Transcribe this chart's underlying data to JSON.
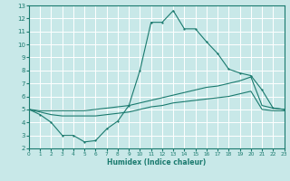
{
  "xlabel": "Humidex (Indice chaleur)",
  "background_color": "#c8e8e8",
  "grid_color": "#ffffff",
  "line_color": "#1a7a6e",
  "xlim": [
    0,
    23
  ],
  "ylim": [
    2,
    13
  ],
  "xticks": [
    0,
    1,
    2,
    3,
    4,
    5,
    6,
    7,
    8,
    9,
    10,
    11,
    12,
    13,
    14,
    15,
    16,
    17,
    18,
    19,
    20,
    21,
    22,
    23
  ],
  "yticks": [
    2,
    3,
    4,
    5,
    6,
    7,
    8,
    9,
    10,
    11,
    12,
    13
  ],
  "curve1": {
    "x": [
      0,
      1,
      2,
      3,
      4,
      5,
      6,
      7,
      8,
      9,
      10,
      11,
      12,
      13,
      14,
      15,
      16,
      17,
      18,
      19,
      20,
      21,
      22,
      23
    ],
    "y": [
      5.0,
      4.6,
      4.0,
      3.0,
      3.0,
      2.5,
      2.6,
      3.5,
      4.1,
      5.3,
      8.0,
      11.7,
      11.7,
      12.6,
      11.2,
      11.2,
      10.2,
      9.3,
      8.1,
      7.8,
      7.6,
      6.5,
      5.1,
      5.0
    ]
  },
  "curve2": {
    "x": [
      0,
      1,
      2,
      3,
      4,
      5,
      6,
      7,
      8,
      9,
      10,
      11,
      12,
      13,
      14,
      15,
      16,
      17,
      18,
      19,
      20,
      21,
      22,
      23
    ],
    "y": [
      5.0,
      4.9,
      4.9,
      4.9,
      4.9,
      4.9,
      5.0,
      5.1,
      5.2,
      5.3,
      5.5,
      5.7,
      5.9,
      6.1,
      6.3,
      6.5,
      6.7,
      6.8,
      7.0,
      7.2,
      7.5,
      5.3,
      5.1,
      5.0
    ]
  },
  "curve3": {
    "x": [
      0,
      1,
      2,
      3,
      4,
      5,
      6,
      7,
      8,
      9,
      10,
      11,
      12,
      13,
      14,
      15,
      16,
      17,
      18,
      19,
      20,
      21,
      22,
      23
    ],
    "y": [
      5.0,
      4.8,
      4.6,
      4.5,
      4.5,
      4.5,
      4.5,
      4.6,
      4.7,
      4.8,
      5.0,
      5.2,
      5.3,
      5.5,
      5.6,
      5.7,
      5.8,
      5.9,
      6.0,
      6.2,
      6.4,
      5.0,
      4.9,
      4.9
    ]
  }
}
